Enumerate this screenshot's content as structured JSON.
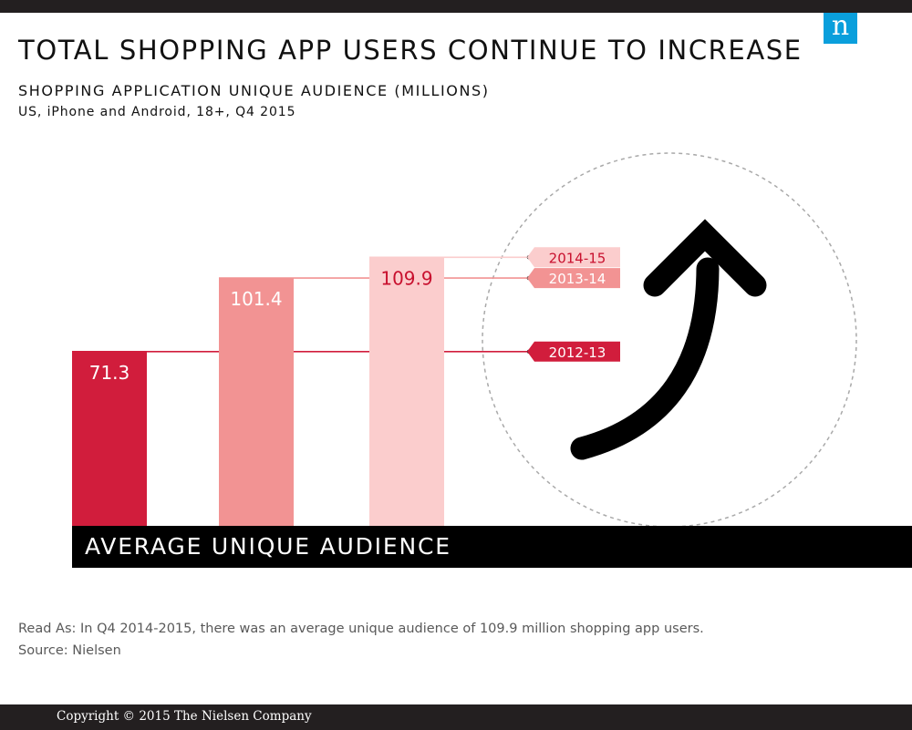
{
  "header": {
    "title": "TOTAL SHOPPING APP USERS CONTINUE TO INCREASE",
    "subtitle": "SHOPPING APPLICATION UNIQUE AUDIENCE (MILLIONS)",
    "subnote": "US, iPhone and Android, 18+, Q4 2015",
    "logo_text": "n",
    "logo_color": "#0a9fdc"
  },
  "chart_data": {
    "type": "bar",
    "title": "SHOPPING APPLICATION UNIQUE AUDIENCE (MILLIONS)",
    "categories": [
      "2012-13",
      "2013-14",
      "2014-15"
    ],
    "values": [
      71.3,
      101.4,
      109.9
    ],
    "value_labels": [
      "71.3",
      "101.4",
      "109.9"
    ],
    "colors": [
      "#d11d3c",
      "#f29393",
      "#fbcdcd"
    ],
    "label_text_colors": [
      "#ffffff",
      "#ffffff",
      "#c8102e"
    ],
    "tag_text_colors": [
      "#ffffff",
      "#ffffff",
      "#c8102e"
    ],
    "xlabel": "AVERAGE UNIQUE AUDIENCE",
    "ylabel": "",
    "ylim": [
      0,
      132
    ],
    "grid": false,
    "legend": "right, tag labels linked to bar tops"
  },
  "axis_label": "AVERAGE UNIQUE AUDIENCE",
  "notes": {
    "read_as": "Read As: In Q4 2014-2015, there was an average unique audience of 109.9 million shopping app users.",
    "source": "Source: Nielsen"
  },
  "footer": {
    "copyright": "Copyright © 2015 The Nielsen Company"
  }
}
